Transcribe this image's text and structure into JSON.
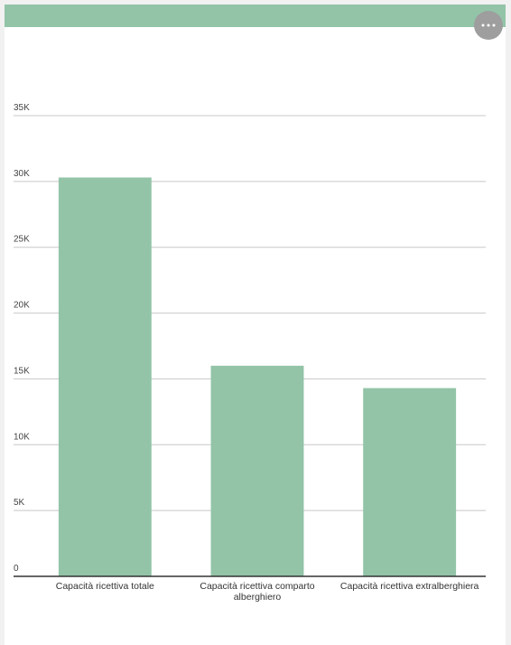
{
  "chart_data": {
    "type": "bar",
    "categories": [
      "Capacità ricettiva totale",
      "Capacità ricettiva comparto alberghiero",
      "Capacità ricettiva extralberghiera"
    ],
    "values": [
      30300,
      16000,
      14300
    ],
    "color": "#93c4a8",
    "ylim": [
      0,
      35000
    ],
    "yticks": [
      0,
      {
        "value": 5000,
        "label": "5K"
      },
      {
        "value": 10000,
        "label": "10K"
      },
      {
        "value": 15000,
        "label": "15K"
      },
      {
        "value": 20000,
        "label": "20K"
      },
      {
        "value": 25000,
        "label": "25K"
      },
      {
        "value": 30000,
        "label": "30K"
      },
      {
        "value": 35000,
        "label": "35K"
      }
    ],
    "grid": true
  }
}
